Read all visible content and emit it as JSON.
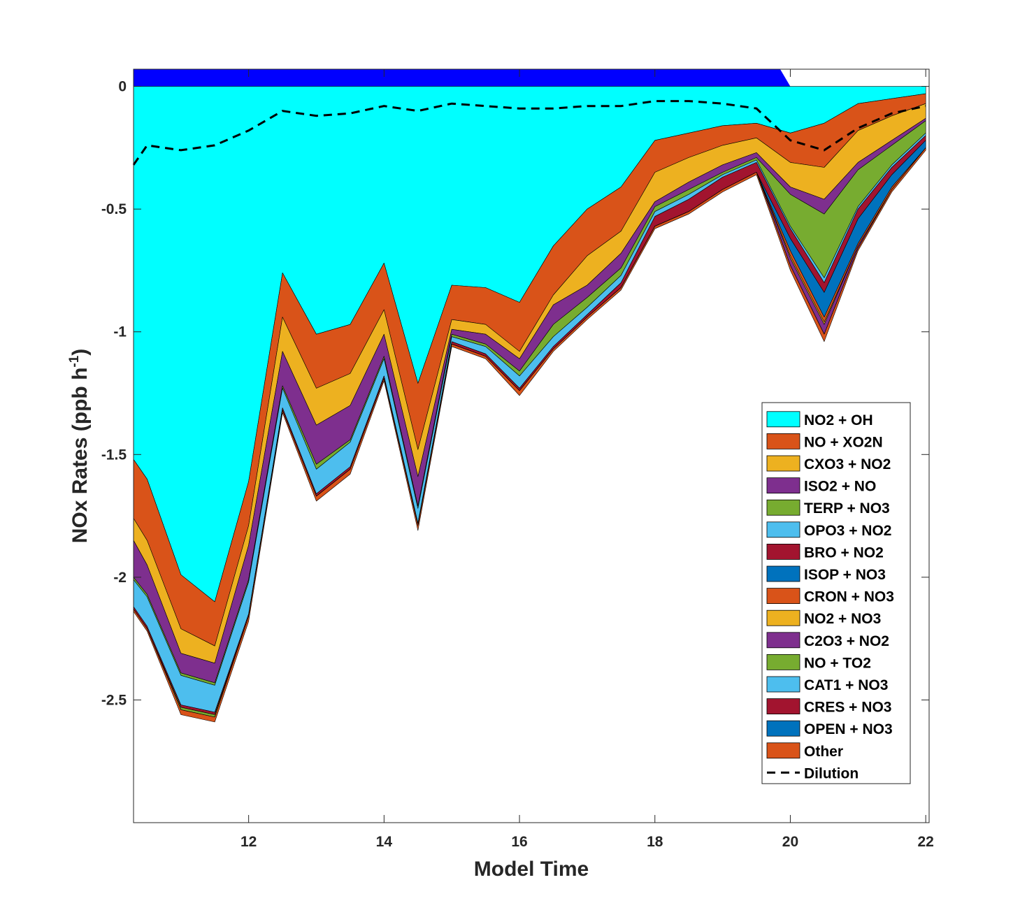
{
  "chart_data": {
    "type": "area",
    "xlabel": "Model Time",
    "ylabel": "NOx Rates (ppb h",
    "ylabel_sup": "-1",
    "ylabel_close": ")",
    "xlim": [
      10.3,
      22.05
    ],
    "ylim": [
      -3.0,
      0.07
    ],
    "xticks": [
      12,
      14,
      16,
      18,
      20,
      22
    ],
    "yticks": [
      0,
      -0.5,
      -1,
      -1.5,
      -2,
      -2.5
    ],
    "ytick_labels": [
      "0",
      "-0.5",
      "-1",
      "-1.5",
      "-2",
      "-2.5"
    ],
    "x": [
      10.3,
      10.5,
      11,
      11.5,
      12,
      12.5,
      13,
      13.5,
      14,
      14.5,
      15,
      15.5,
      16,
      16.5,
      17,
      17.5,
      18,
      18.5,
      19,
      19.5,
      20,
      20.5,
      21,
      21.5,
      22
    ],
    "positive_fill": {
      "color": "#0000ff",
      "value": 0.07,
      "end_x": 19.85
    },
    "series": [
      {
        "name": "NO2 + OH",
        "color": "#00ffff",
        "values": [
          -1.52,
          -1.6,
          -1.99,
          -2.1,
          -1.61,
          -0.76,
          -1.01,
          -0.97,
          -0.72,
          -1.21,
          -0.81,
          -0.82,
          -0.88,
          -0.65,
          -0.5,
          -0.41,
          -0.22,
          -0.19,
          -0.16,
          -0.15,
          -0.19,
          -0.15,
          -0.07,
          -0.05,
          -0.03
        ]
      },
      {
        "name": "NO + XO2N",
        "color": "#d95319",
        "values": [
          -0.24,
          -0.25,
          -0.22,
          -0.18,
          -0.18,
          -0.18,
          -0.22,
          -0.2,
          -0.19,
          -0.27,
          -0.14,
          -0.15,
          -0.2,
          -0.2,
          -0.19,
          -0.18,
          -0.13,
          -0.1,
          -0.08,
          -0.06,
          -0.12,
          -0.18,
          -0.11,
          -0.07,
          -0.04
        ]
      },
      {
        "name": "CXO3 + NO2",
        "color": "#edb120",
        "values": [
          -0.09,
          -0.1,
          -0.1,
          -0.07,
          -0.08,
          -0.14,
          -0.15,
          -0.13,
          -0.1,
          -0.11,
          -0.04,
          -0.04,
          -0.03,
          -0.04,
          -0.12,
          -0.09,
          -0.12,
          -0.1,
          -0.08,
          -0.06,
          -0.1,
          -0.13,
          -0.13,
          -0.1,
          -0.06
        ]
      },
      {
        "name": "ISO2 + NO",
        "color": "#7e2f8e",
        "values": [
          -0.15,
          -0.12,
          -0.08,
          -0.08,
          -0.14,
          -0.14,
          -0.16,
          -0.14,
          -0.09,
          -0.12,
          -0.02,
          -0.04,
          -0.05,
          -0.08,
          -0.05,
          -0.06,
          -0.02,
          -0.03,
          -0.03,
          -0.02,
          -0.03,
          -0.06,
          -0.03,
          -0.02,
          -0.01
        ]
      },
      {
        "name": "TERP + NO3",
        "color": "#77ac30",
        "values": [
          -0.01,
          -0.01,
          -0.01,
          -0.01,
          -0.01,
          -0.01,
          -0.02,
          -0.01,
          -0.01,
          -0.01,
          -0.01,
          -0.01,
          -0.02,
          -0.05,
          -0.04,
          -0.03,
          -0.02,
          -0.02,
          -0.01,
          -0.01,
          -0.13,
          -0.26,
          -0.15,
          -0.08,
          -0.05
        ]
      },
      {
        "name": "OPO3 + NO2",
        "color": "#4dbeee",
        "values": [
          -0.11,
          -0.12,
          -0.12,
          -0.11,
          -0.13,
          -0.08,
          -0.1,
          -0.1,
          -0.07,
          -0.06,
          -0.02,
          -0.03,
          -0.05,
          -0.04,
          -0.03,
          -0.03,
          -0.02,
          -0.02,
          -0.01,
          -0.01,
          -0.01,
          -0.02,
          -0.01,
          -0.01,
          -0.01
        ]
      },
      {
        "name": "BRO + NO2",
        "color": "#a2142f",
        "values": [
          -0.01,
          -0.01,
          -0.01,
          -0.01,
          -0.01,
          -0.01,
          -0.01,
          -0.01,
          -0.01,
          -0.01,
          -0.01,
          -0.01,
          -0.01,
          -0.01,
          -0.01,
          -0.02,
          -0.04,
          -0.05,
          -0.05,
          -0.04,
          -0.04,
          -0.04,
          -0.04,
          -0.03,
          -0.02
        ]
      },
      {
        "name": "ISOP + NO3",
        "color": "#0072bd",
        "values": [
          0,
          0,
          0,
          0,
          0,
          0,
          0,
          0,
          0,
          0,
          0,
          0,
          0,
          0,
          0,
          0,
          0,
          0,
          0,
          0,
          -0.05,
          -0.1,
          -0.1,
          -0.05,
          -0.03
        ]
      },
      {
        "name": "CRON + NO3",
        "color": "#d95319",
        "values": [
          0,
          0,
          0,
          0,
          0,
          0,
          0,
          0,
          0,
          0,
          0,
          0,
          0,
          0,
          0,
          0,
          0,
          0,
          0,
          0,
          -0.02,
          -0.02,
          -0.01,
          -0.01,
          0
        ]
      },
      {
        "name": "NO2 + NO3",
        "color": "#edb120",
        "values": [
          0,
          0,
          0,
          0,
          0,
          0,
          0,
          0,
          0,
          0,
          0,
          0,
          0,
          0,
          0,
          0,
          0,
          0,
          0,
          0,
          -0.01,
          -0.01,
          0,
          0,
          0
        ]
      },
      {
        "name": "C2O3 + NO2",
        "color": "#7e2f8e",
        "values": [
          0,
          0,
          0,
          0,
          0,
          0,
          0,
          0,
          0,
          0,
          0,
          0,
          0,
          0,
          0,
          0,
          0,
          0,
          0,
          0,
          -0.03,
          -0.04,
          -0.01,
          0,
          0
        ]
      },
      {
        "name": "NO + TO2",
        "color": "#77ac30",
        "values": [
          0,
          0,
          -0.01,
          -0.01,
          0,
          0,
          0,
          0,
          0,
          0,
          0,
          0,
          0,
          0,
          0,
          0,
          0,
          0,
          0,
          0,
          0,
          0,
          0,
          0,
          0
        ]
      },
      {
        "name": "CAT1 + NO3",
        "color": "#4dbeee",
        "values": [
          0,
          0,
          0,
          0,
          0,
          0,
          0,
          0,
          0,
          0,
          0,
          0,
          0,
          0,
          0,
          0,
          0,
          0,
          0,
          0,
          0,
          0,
          0,
          0,
          0
        ]
      },
      {
        "name": "CRES + NO3",
        "color": "#a2142f",
        "values": [
          0,
          0,
          0,
          0,
          0,
          0,
          0,
          0,
          0,
          0,
          0,
          0,
          0,
          0,
          0,
          0,
          0,
          0,
          0,
          0,
          0,
          0,
          0,
          0,
          0
        ]
      },
      {
        "name": "OPEN + NO3",
        "color": "#0072bd",
        "values": [
          0,
          0,
          0,
          0,
          0,
          0,
          0,
          0,
          0,
          0,
          0,
          0,
          0,
          0,
          0,
          0,
          0,
          0,
          0,
          0,
          0,
          0,
          0,
          0,
          0
        ]
      },
      {
        "name": "Other",
        "color": "#d95319",
        "values": [
          -0.01,
          -0.01,
          -0.02,
          -0.02,
          -0.02,
          -0.01,
          -0.02,
          -0.02,
          -0.01,
          -0.02,
          -0.01,
          -0.01,
          -0.02,
          -0.01,
          -0.01,
          -0.01,
          -0.01,
          -0.01,
          -0.01,
          -0.01,
          -0.02,
          -0.03,
          -0.01,
          -0.01,
          -0.01
        ]
      }
    ],
    "dilution": {
      "name": "Dilution",
      "x": [
        10.3,
        10.5,
        11,
        11.5,
        12,
        12.5,
        13,
        13.5,
        14,
        14.5,
        15,
        15.5,
        16,
        16.5,
        17,
        17.5,
        18,
        18.5,
        19,
        19.5,
        20,
        20.5,
        21,
        21.5,
        22
      ],
      "values": [
        -0.32,
        -0.24,
        -0.26,
        -0.24,
        -0.18,
        -0.1,
        -0.12,
        -0.11,
        -0.08,
        -0.1,
        -0.07,
        -0.08,
        -0.09,
        -0.09,
        -0.08,
        -0.08,
        -0.06,
        -0.06,
        -0.07,
        -0.09,
        -0.22,
        -0.26,
        -0.17,
        -0.11,
        -0.08
      ]
    },
    "legend": {
      "placement": "lower-right"
    }
  }
}
